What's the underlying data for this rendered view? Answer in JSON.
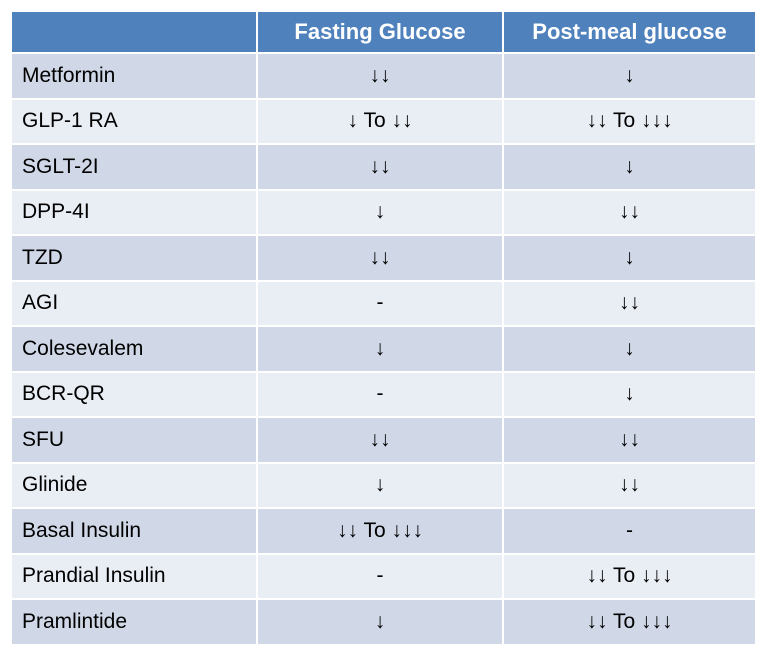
{
  "table": {
    "headers": [
      "",
      "Fasting Glucose",
      "Post-meal glucose"
    ],
    "rows": [
      {
        "drug": "Metformin",
        "fasting": "↓↓",
        "postmeal": "↓"
      },
      {
        "drug": "GLP-1 RA",
        "fasting": "↓ To ↓↓",
        "postmeal": "↓↓ To ↓↓↓"
      },
      {
        "drug": "SGLT-2I",
        "fasting": "↓↓",
        "postmeal": "↓"
      },
      {
        "drug": "DPP-4I",
        "fasting": "↓",
        "postmeal": "↓↓"
      },
      {
        "drug": "TZD",
        "fasting": "↓↓",
        "postmeal": "↓"
      },
      {
        "drug": "AGI",
        "fasting": "-",
        "postmeal": "↓↓"
      },
      {
        "drug": "Colesevalem",
        "fasting": "↓",
        "postmeal": "↓"
      },
      {
        "drug": "BCR-QR",
        "fasting": "-",
        "postmeal": "↓"
      },
      {
        "drug": "SFU",
        "fasting": "↓↓",
        "postmeal": "↓↓"
      },
      {
        "drug": "Glinide",
        "fasting": "↓",
        "postmeal": "↓↓"
      },
      {
        "drug": "Basal Insulin",
        "fasting": "↓↓ To ↓↓↓",
        "postmeal": "-"
      },
      {
        "drug": "Prandial Insulin",
        "fasting": "-",
        "postmeal": "↓↓ To ↓↓↓"
      },
      {
        "drug": "Pramlintide",
        "fasting": "↓",
        "postmeal": "↓↓ To ↓↓↓"
      }
    ]
  },
  "colors": {
    "header_bg": "#4f81bd",
    "row_odd_bg": "#d0d8e8",
    "row_even_bg": "#e9edf4"
  }
}
